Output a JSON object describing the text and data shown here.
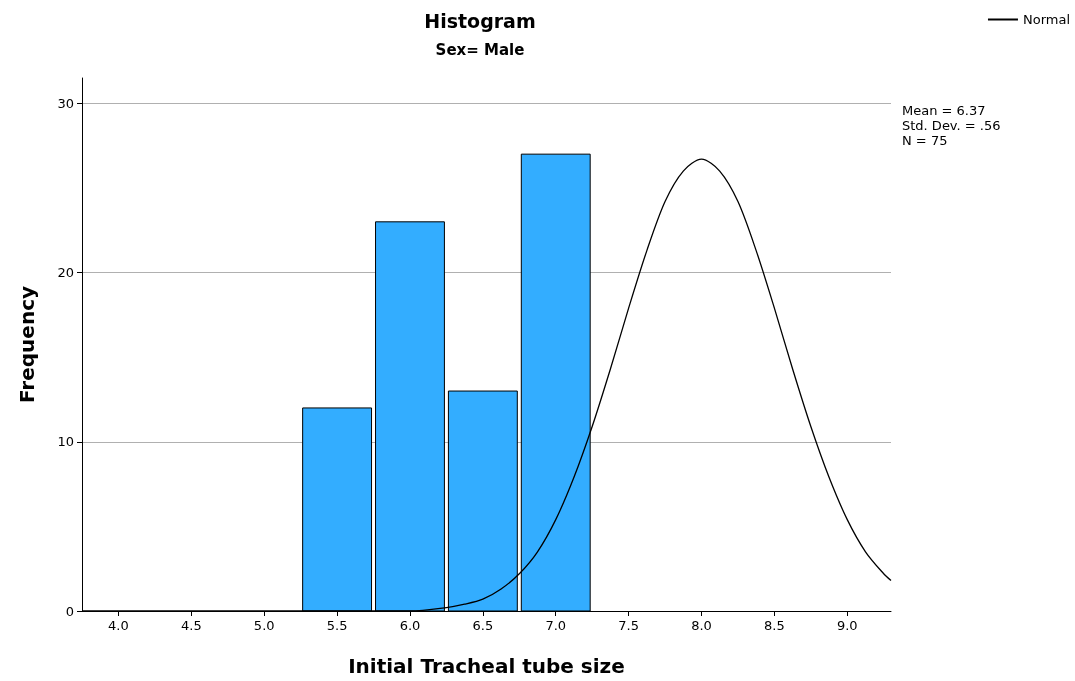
{
  "chart_data": {
    "type": "histogram",
    "title": "Histogram",
    "subtitle": "Sex= Male",
    "xlabel": "Initial Tracheal tube size",
    "ylabel": "Frequency",
    "series": [
      {
        "bins": [
          5.25,
          5.75,
          6.25,
          6.75,
          7.25
        ],
        "values": [
          12,
          23,
          13,
          27
        ],
        "color": "#33adff"
      },
      {
        "type": "line",
        "name": "Normal",
        "color": "#000000",
        "marker": "none",
        "line_style": "solid",
        "x": [
          3.75,
          4.0,
          4.5,
          5.0,
          5.5,
          6.0,
          6.25,
          6.375,
          6.5,
          6.625,
          6.75,
          6.875,
          7.0,
          7.125,
          7.25,
          7.375,
          7.5,
          7.625,
          7.75,
          7.875,
          8.0,
          8.125,
          8.25,
          8.375,
          8.5,
          8.625,
          8.75,
          8.875,
          9.0,
          9.125,
          9.25,
          9.3
        ],
        "values": [
          0,
          0,
          0,
          0,
          0,
          0,
          0.2,
          0.4,
          0.7,
          1.3,
          2.2,
          3.5,
          5.4,
          7.9,
          10.9,
          14.3,
          17.9,
          21.3,
          24.2,
          26.0,
          26.7,
          26.0,
          24.2,
          21.3,
          17.9,
          14.3,
          10.9,
          7.9,
          5.4,
          3.5,
          2.2,
          1.8
        ]
      }
    ],
    "xlim": [
      3.75,
      9.3
    ],
    "xticks": [
      {
        "value": 4,
        "label": "4.0"
      },
      {
        "value": 4.5,
        "label": "4.5"
      },
      {
        "value": 5,
        "label": "5.0"
      },
      {
        "value": 5.5,
        "label": "5.5"
      },
      {
        "value": 6,
        "label": "6.0"
      },
      {
        "value": 6.5,
        "label": "6.5"
      },
      {
        "value": 7,
        "label": "7.0"
      },
      {
        "value": 7.5,
        "label": "7.5"
      },
      {
        "value": 8,
        "label": "8.0"
      },
      {
        "value": 8.5,
        "label": "8.5"
      },
      {
        "value": 9,
        "label": "9.0"
      }
    ],
    "ylim": [
      0,
      31.5
    ],
    "yticks": [
      0,
      10,
      20,
      30
    ],
    "grid": "y",
    "legend": "top right",
    "annotations": [
      "Mean = 6.37",
      "Std. Dev. = .56",
      "N = 75"
    ]
  }
}
